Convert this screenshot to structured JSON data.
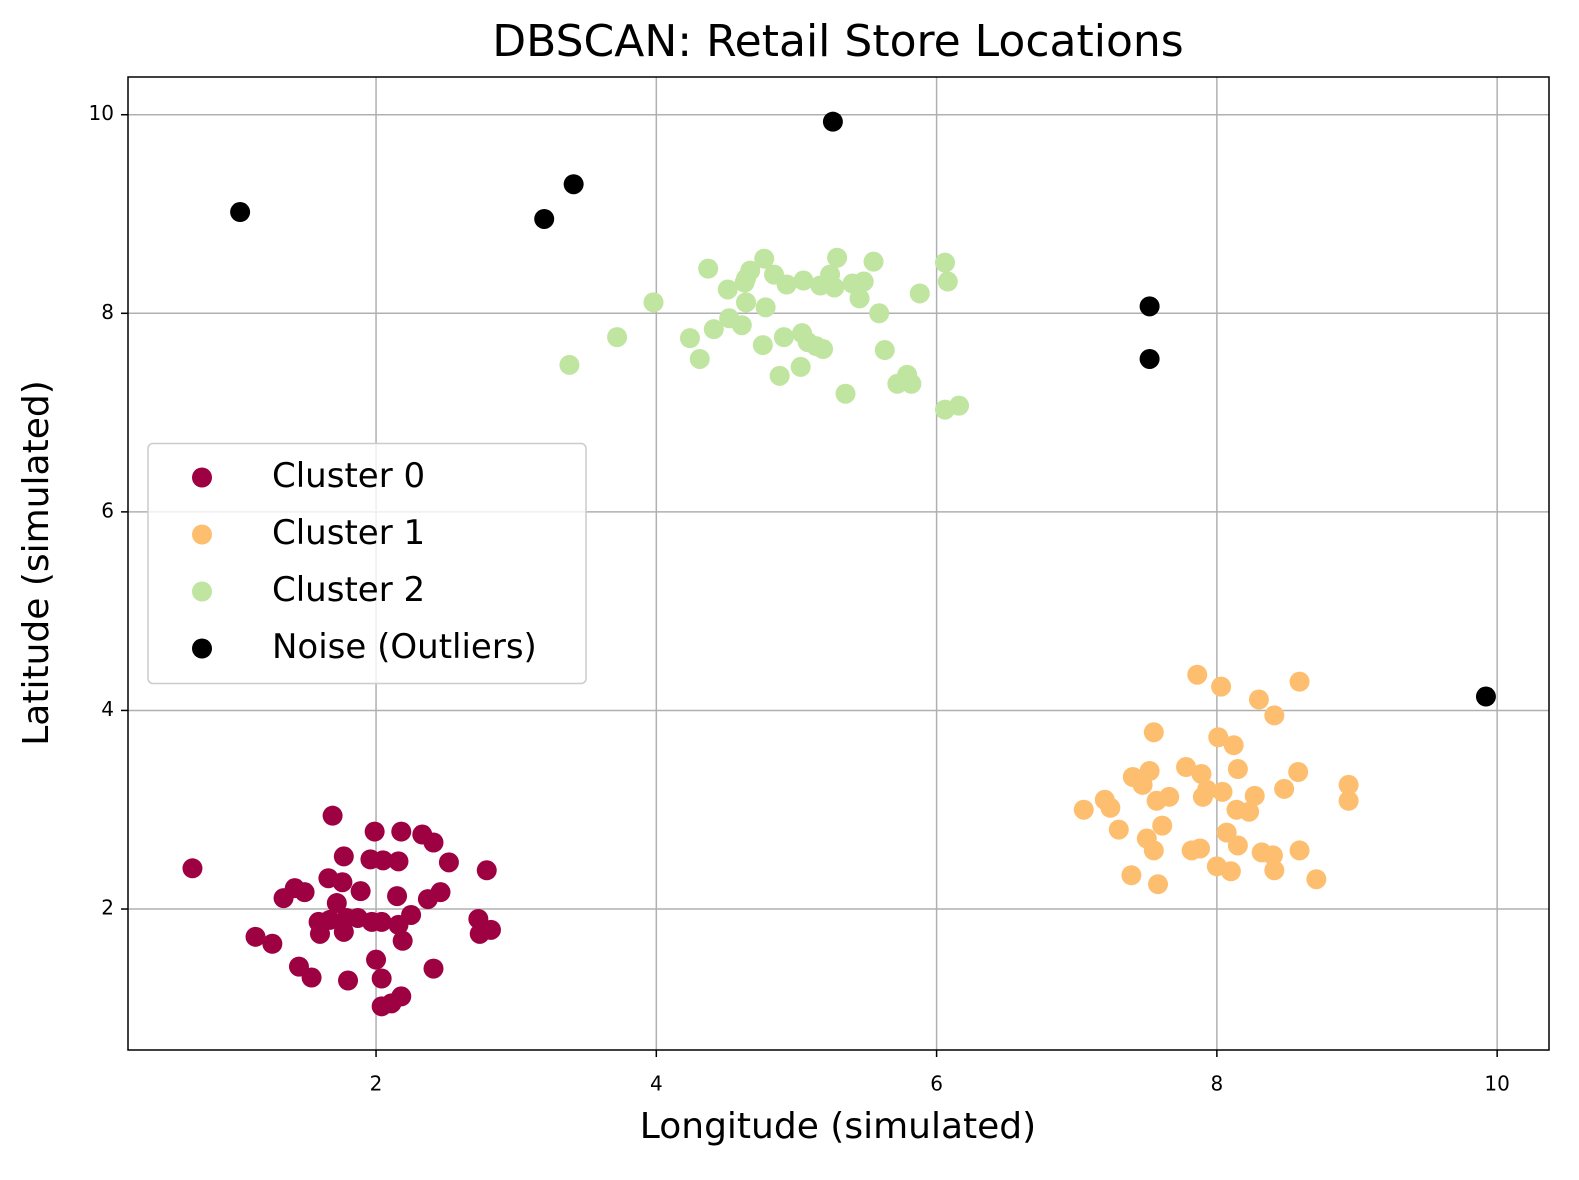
{
  "chart_data": {
    "type": "scatter",
    "title": "DBSCAN: Retail Store Locations",
    "x_label": "Longitude (simulated)",
    "y_label": "Latitude (simulated)",
    "xlim": [
      0.23,
      10.37
    ],
    "ylim": [
      0.58,
      10.38
    ],
    "xticks": [
      2,
      4,
      6,
      8,
      10
    ],
    "yticks": [
      2,
      4,
      6,
      8,
      10
    ],
    "grid": true,
    "legend": "center left",
    "series": [
      {
        "name": "Cluster 0",
        "color": "#9e0142",
        "x": [
          0.69,
          1.69,
          1.99,
          2.18,
          2.33,
          2.41,
          1.77,
          1.96,
          2.05,
          2.16,
          2.52,
          2.79,
          1.66,
          1.76,
          1.42,
          1.49,
          1.89,
          2.46,
          1.34,
          2.15,
          2.37,
          1.72,
          2.25,
          2.73,
          1.59,
          1.67,
          1.79,
          1.87,
          1.97,
          2.04,
          2.16,
          1.77,
          1.6,
          2.74,
          2.82,
          1.14,
          2.19,
          1.26,
          2.0,
          1.45,
          2.41,
          1.54,
          2.04,
          1.8,
          2.18,
          2.11,
          2.04
        ],
        "y": [
          2.41,
          2.94,
          2.78,
          2.78,
          2.75,
          2.67,
          2.53,
          2.5,
          2.49,
          2.48,
          2.47,
          2.39,
          2.31,
          2.27,
          2.21,
          2.17,
          2.18,
          2.17,
          2.11,
          2.13,
          2.1,
          2.06,
          1.94,
          1.9,
          1.87,
          1.89,
          1.91,
          1.91,
          1.87,
          1.87,
          1.84,
          1.77,
          1.75,
          1.75,
          1.79,
          1.72,
          1.68,
          1.65,
          1.49,
          1.42,
          1.4,
          1.31,
          1.3,
          1.28,
          1.12,
          1.05,
          1.02
        ]
      },
      {
        "name": "Cluster 1",
        "color": "#fdbf6f",
        "x": [
          7.86,
          8.03,
          8.59,
          8.3,
          8.41,
          7.55,
          8.01,
          8.12,
          7.78,
          8.15,
          8.58,
          7.52,
          7.4,
          7.89,
          7.47,
          8.94,
          7.93,
          8.48,
          8.04,
          8.27,
          7.66,
          7.9,
          7.2,
          7.57,
          8.94,
          7.24,
          7.05,
          8.14,
          8.23,
          7.61,
          7.3,
          8.07,
          7.5,
          8.15,
          7.88,
          7.82,
          7.55,
          8.59,
          8.32,
          8.4,
          8.0,
          8.1,
          8.41,
          7.39,
          8.71,
          7.58
        ],
        "y": [
          4.36,
          4.24,
          4.29,
          4.11,
          3.95,
          3.78,
          3.73,
          3.65,
          3.43,
          3.41,
          3.38,
          3.39,
          3.33,
          3.36,
          3.25,
          3.25,
          3.2,
          3.21,
          3.18,
          3.14,
          3.13,
          3.13,
          3.1,
          3.09,
          3.09,
          3.02,
          3.0,
          3.0,
          2.98,
          2.84,
          2.8,
          2.77,
          2.71,
          2.64,
          2.61,
          2.59,
          2.59,
          2.59,
          2.57,
          2.54,
          2.43,
          2.38,
          2.39,
          2.34,
          2.3,
          2.25
        ]
      },
      {
        "name": "Cluster 2",
        "color": "#bfe5a0",
        "x": [
          5.29,
          4.77,
          5.55,
          6.06,
          4.37,
          4.67,
          4.64,
          4.84,
          5.24,
          5.05,
          5.48,
          6.08,
          4.63,
          5.4,
          4.93,
          5.17,
          5.27,
          4.51,
          5.88,
          5.45,
          3.98,
          4.64,
          4.78,
          5.59,
          4.52,
          4.61,
          4.41,
          3.72,
          4.24,
          5.04,
          4.91,
          5.08,
          4.76,
          5.14,
          5.19,
          5.63,
          4.31,
          3.38,
          5.03,
          4.88,
          5.79,
          5.72,
          5.82,
          5.35,
          6.06,
          6.16
        ],
        "y": [
          8.56,
          8.55,
          8.52,
          8.51,
          8.45,
          8.43,
          8.35,
          8.39,
          8.39,
          8.33,
          8.32,
          8.32,
          8.31,
          8.3,
          8.29,
          8.28,
          8.26,
          8.24,
          8.2,
          8.15,
          8.11,
          8.11,
          8.06,
          8.0,
          7.95,
          7.88,
          7.84,
          7.76,
          7.75,
          7.8,
          7.76,
          7.71,
          7.68,
          7.67,
          7.64,
          7.63,
          7.54,
          7.48,
          7.46,
          7.37,
          7.38,
          7.29,
          7.29,
          7.19,
          7.03,
          7.07
        ]
      },
      {
        "name": "Noise (Outliers)",
        "color": "#000000",
        "x": [
          1.03,
          3.2,
          3.41,
          5.26,
          7.52,
          7.52,
          9.92
        ],
        "y": [
          9.02,
          8.95,
          9.3,
          9.93,
          8.07,
          7.54,
          4.14
        ]
      }
    ]
  }
}
